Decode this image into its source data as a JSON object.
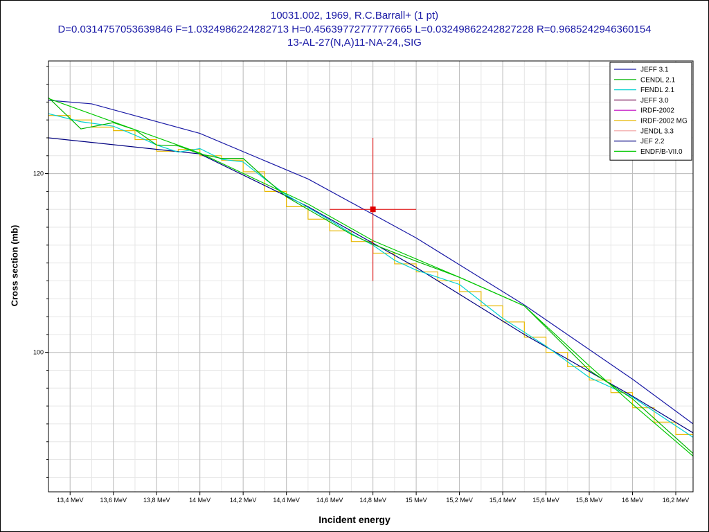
{
  "title": {
    "line1": "10031.002, 1969, R.C.Barrall+ (1 pt)",
    "line2": "D=0.0314757053639846 F=1.0324986224282713 H=0.45639772777777665 L=0.03249862242827228 R=0.9685242946360154",
    "line3": "13-AL-27(N,A)11-NA-24,,SIG"
  },
  "chart_data": {
    "type": "line",
    "title": "10031.002, 1969, R.C.Barrall+ (1 pt)",
    "xlabel": "Incident energy",
    "ylabel": "Cross section (mb)",
    "xlim": [
      13.3,
      16.28
    ],
    "ylim": [
      84.4,
      132.6
    ],
    "x_unit": "MeV",
    "x_ticks": [
      13.4,
      13.6,
      13.8,
      14.0,
      14.2,
      14.4,
      14.6,
      14.8,
      15.0,
      15.2,
      15.4,
      15.6,
      15.8,
      16.0,
      16.2
    ],
    "x_tick_labels": [
      "13,4 MeV",
      "13,6 MeV",
      "13,8 MeV",
      "14 MeV",
      "14,2 MeV",
      "14,4 MeV",
      "14,6 MeV",
      "14,8 MeV",
      "15 MeV",
      "15,2 MeV",
      "15,4 MeV",
      "15,6 MeV",
      "15,8 MeV",
      "16 MeV",
      "16,2 MeV"
    ],
    "y_major_ticks": [
      100,
      120
    ],
    "y_tick_labels": [
      "100",
      "120"
    ],
    "y_minor_step": 2,
    "grid": true,
    "legend_position": "top-right",
    "experimental_point": {
      "x": 14.8,
      "y": 116.0,
      "x_err": 0.2,
      "y_err": 8.0,
      "color": "#e00000"
    },
    "series": [
      {
        "name": "JEFF 3.1",
        "color": "#1a1aa6",
        "style": "line",
        "x": [
          13.3,
          13.5,
          14.0,
          14.5,
          15.0,
          15.5,
          16.0,
          16.28
        ],
        "y": [
          128.2,
          127.8,
          124.5,
          119.4,
          112.8,
          105.3,
          97.0,
          92.0
        ]
      },
      {
        "name": "CENDL 2.1",
        "color": "#00b400",
        "style": "line",
        "x": [
          13.3,
          13.45,
          13.6,
          13.7,
          13.8,
          13.9,
          14.0,
          14.1,
          14.2,
          14.3,
          14.4,
          14.5,
          14.6,
          14.7,
          14.8,
          15.0,
          15.2,
          15.5,
          15.8,
          16.0,
          16.28
        ],
        "y": [
          128.5,
          125.0,
          125.7,
          124.9,
          123.2,
          123.1,
          122.2,
          121.7,
          121.7,
          119.5,
          117.4,
          116.0,
          114.6,
          113.2,
          112.1,
          110.2,
          108.4,
          105.2,
          98.0,
          94.8,
          88.7
        ]
      },
      {
        "name": "FENDL 2.1",
        "color": "#00d0d0",
        "style": "line",
        "x": [
          13.3,
          13.45,
          13.6,
          13.7,
          13.8,
          13.9,
          14.0,
          14.1,
          14.2,
          14.3,
          14.4,
          14.5,
          14.6,
          14.7,
          14.8,
          14.9,
          15.0,
          15.2,
          15.4,
          15.6,
          15.8,
          16.0,
          16.28
        ],
        "y": [
          126.7,
          125.8,
          125.3,
          124.3,
          123.2,
          122.4,
          122.8,
          121.6,
          121.3,
          119.4,
          117.6,
          116.2,
          114.8,
          113.3,
          112.0,
          110.3,
          109.2,
          107.6,
          103.8,
          100.7,
          97.2,
          95.0,
          90.5
        ]
      },
      {
        "name": "JEFF 3.0",
        "color": "#7d1a5c",
        "style": "line",
        "x": [],
        "y": []
      },
      {
        "name": "IRDF-2002",
        "color": "#c000c0",
        "style": "line",
        "x": [],
        "y": []
      },
      {
        "name": "IRDF-2002 MG",
        "color": "#e8b800",
        "style": "step",
        "edges": [
          13.3,
          13.4,
          13.5,
          13.6,
          13.7,
          13.8,
          13.9,
          14.0,
          14.1,
          14.2,
          14.3,
          14.4,
          14.5,
          14.6,
          14.7,
          14.8,
          14.9,
          15.0,
          15.1,
          15.2,
          15.3,
          15.4,
          15.5,
          15.6,
          15.7,
          15.8,
          15.9,
          16.0,
          16.1,
          16.2,
          16.28
        ],
        "y": [
          126.5,
          126.0,
          125.2,
          124.8,
          123.8,
          122.5,
          122.7,
          122.0,
          121.5,
          120.2,
          118.0,
          116.3,
          114.9,
          113.6,
          112.4,
          111.1,
          109.9,
          109.0,
          108.0,
          106.8,
          105.2,
          103.4,
          101.7,
          100.0,
          98.4,
          96.9,
          95.5,
          93.8,
          92.2,
          90.8
        ]
      },
      {
        "name": "JENDL 3.3",
        "color": "#f0a0a0",
        "style": "line",
        "x": [],
        "y": []
      },
      {
        "name": "JEF 2.2",
        "color": "#000080",
        "style": "line",
        "x": [
          13.3,
          14.0,
          14.5,
          15.0,
          15.5,
          16.0,
          16.28
        ],
        "y": [
          124.0,
          122.2,
          116.3,
          109.5,
          102.0,
          95.1,
          91.0
        ]
      },
      {
        "name": "ENDF/B-VII.0",
        "color": "#00c800",
        "style": "line",
        "x": [
          13.3,
          14.0,
          14.5,
          14.8,
          15.2,
          15.5,
          15.8,
          16.0,
          16.28
        ],
        "y": [
          128.4,
          122.3,
          116.6,
          112.5,
          108.4,
          105.2,
          98.5,
          94.2,
          88.4
        ]
      }
    ]
  }
}
